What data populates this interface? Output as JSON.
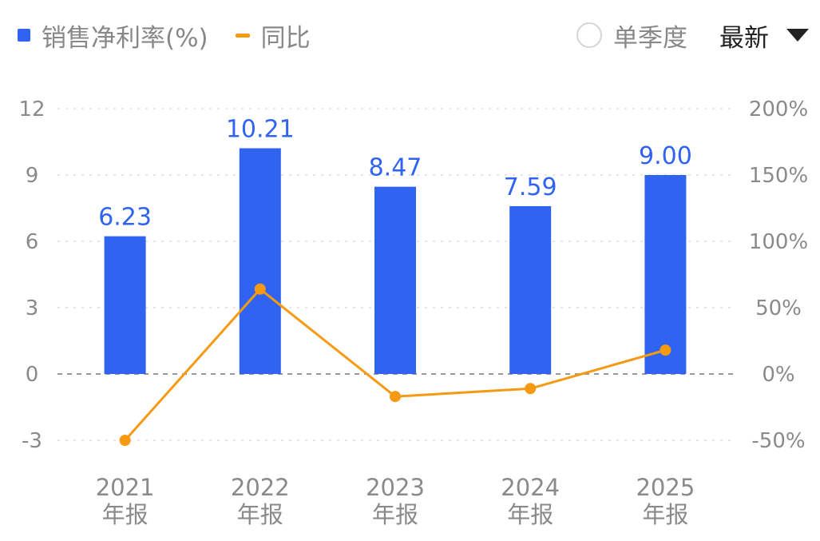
{
  "legend": {
    "bar_label": "销售净利率(%)",
    "line_label": "同比"
  },
  "controls": {
    "quarter_label": "单季度",
    "period_select": "最新"
  },
  "colors": {
    "bar": "#2f63f0",
    "line": "#f59a12",
    "grid": "#e6e6e6",
    "zero_line": "#999999",
    "tick": "#8a8a8a"
  },
  "icons": {
    "radio": "radio-unchecked-icon",
    "dropdown": "caret-down-icon"
  },
  "chart_data": {
    "type": "bar",
    "categories": [
      [
        "2021",
        "年报"
      ],
      [
        "2022",
        "年报"
      ],
      [
        "2023",
        "年报"
      ],
      [
        "2024",
        "年报"
      ],
      [
        "2025",
        "年报"
      ]
    ],
    "series": [
      {
        "name": "销售净利率(%)",
        "type": "bar",
        "axis": "left",
        "values": [
          6.23,
          10.21,
          8.47,
          7.59,
          9.0
        ],
        "labels": [
          "6.23",
          "10.21",
          "8.47",
          "7.59",
          "9.00"
        ]
      },
      {
        "name": "同比",
        "type": "line",
        "axis": "right",
        "values": [
          -50,
          64,
          -17,
          -11,
          18
        ]
      }
    ],
    "left_axis": {
      "ticks": [
        "12",
        "9",
        "6",
        "3",
        "0",
        "-3"
      ],
      "range": [
        -3,
        12
      ]
    },
    "right_axis": {
      "ticks": [
        "200%",
        "150%",
        "100%",
        "50%",
        "0%",
        "-50%"
      ],
      "range": [
        -50,
        200
      ]
    },
    "grid": true
  }
}
